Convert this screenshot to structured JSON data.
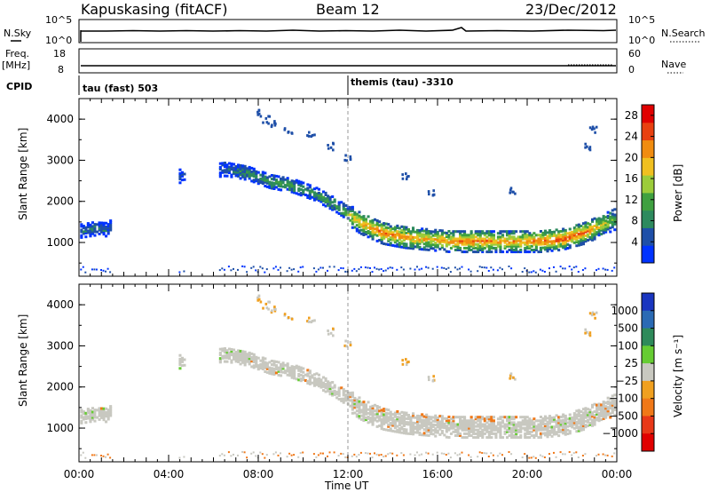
{
  "header": {
    "station": "Kapuskasing (fitACF)",
    "beam": "Beam 12",
    "date": "23/Dec/2012"
  },
  "strip_panels": {
    "nsky": {
      "label": "N.Sky",
      "left_ticks": [
        "10^5",
        "10^0"
      ],
      "right_label": "N.Search",
      "right_ticks": [
        "10^5",
        "10^0"
      ]
    },
    "freq": {
      "label": "Freq.",
      "unit": "[MHz]",
      "left_ticks": [
        "18",
        "8"
      ],
      "right_label": "Nave",
      "right_ticks": [
        "60",
        "0"
      ]
    },
    "cpid": {
      "label": "CPID",
      "programs": [
        "tau (fast) 503",
        "themis (tau) -3310"
      ]
    }
  },
  "colors": {
    "power_scale": [
      "#0033ff",
      "#1e4fa8",
      "#2d8a5e",
      "#3fa040",
      "#9ccc3a",
      "#f0c020",
      "#f08c10",
      "#e84010",
      "#e00000"
    ],
    "velocity_scale": [
      "#1a36c0",
      "#2a6ab4",
      "#2e8a5a",
      "#66cc33",
      "#c8c8c0",
      "#f0a020",
      "#f07818",
      "#e83818",
      "#e00000"
    ]
  },
  "chart_data": [
    {
      "type": "heatmap",
      "title": "Power",
      "xlabel": "Time UT",
      "ylabel": "Slant Range [km]",
      "x_ticks": [
        "00:00",
        "04:00",
        "08:00",
        "12:00",
        "16:00",
        "20:00",
        "00:00"
      ],
      "y_ticks": [
        "1000",
        "2000",
        "3000",
        "4000"
      ],
      "x_range_hours": [
        0,
        24
      ],
      "y_range_km": [
        180,
        4500
      ],
      "colorbar": {
        "label": "Power [dB]",
        "ticks": [
          "4",
          "8",
          "12",
          "16",
          "20",
          "24",
          "28"
        ],
        "range": [
          0,
          30
        ]
      },
      "scatter_band": {
        "time_h": [
          0.1,
          0.6,
          1.2,
          4.5,
          6.5,
          7.5,
          8.5,
          9.5,
          10.5,
          11.5,
          12.5,
          13.5,
          14.5,
          15.5,
          16.5,
          17.5,
          18.5,
          19.5,
          20.5,
          21.5,
          22.5,
          23.5,
          23.9
        ],
        "range_km": [
          1250,
          1300,
          1280,
          2600,
          2750,
          2650,
          2450,
          2350,
          2150,
          1850,
          1450,
          1200,
          1100,
          1050,
          1000,
          1000,
          1000,
          1000,
          1000,
          1050,
          1200,
          1450,
          1550
        ],
        "peak_power_db": [
          6,
          8,
          6,
          4,
          6,
          10,
          12,
          12,
          10,
          12,
          20,
          24,
          22,
          20,
          22,
          24,
          22,
          22,
          24,
          26,
          24,
          16,
          10
        ]
      }
    },
    {
      "type": "heatmap",
      "title": "Velocity",
      "xlabel": "Time UT",
      "ylabel": "Slant Range [km]",
      "x_ticks": [
        "00:00",
        "04:00",
        "08:00",
        "12:00",
        "16:00",
        "20:00",
        "00:00"
      ],
      "y_ticks": [
        "1000",
        "2000",
        "3000",
        "4000"
      ],
      "x_range_hours": [
        0,
        24
      ],
      "y_range_km": [
        180,
        4500
      ],
      "colorbar": {
        "label": "Velocity [m s⁻¹]",
        "ticks": [
          "1000",
          "500",
          "100",
          "25",
          "−25",
          "−100",
          "−500",
          "−1000"
        ]
      },
      "dominant_velocity": "near zero (grey)"
    }
  ]
}
